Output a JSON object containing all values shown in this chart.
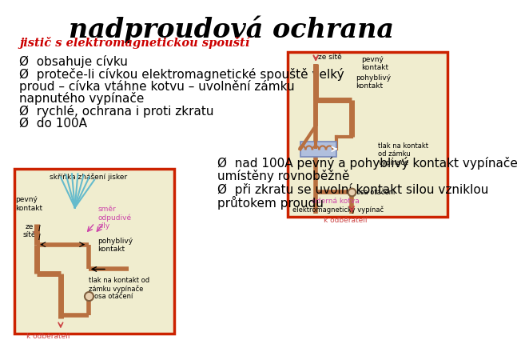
{
  "title": "nadproudová ochrana",
  "subtitle": "jistič s elektromagnetickou spouští",
  "bullet_points": [
    "obsahuje cívku",
    "proteče-li cívkou elektromagnetické spouště velký",
    "proud – cívka vtáhne kotvu – uvolnění zámku",
    "napnutého vypínače",
    "rychlé, ochrana i proti zkratu",
    "do 100A"
  ],
  "bottom_bullets_line1": "Ø  nad 100A pevný a pohyblivý kontakt vypínače",
  "bottom_bullets_line2": "umístěny rovnoběžně",
  "bottom_bullets_line3": "Ø  při zkratu se uvolní kontakt silou vzniklou",
  "bottom_bullets_line4": "průtokem proudu",
  "background_color": "#ffffff",
  "title_color": "#000000",
  "subtitle_color": "#cc0000",
  "bullet_color": "#000000",
  "border_color": "#cc2200",
  "diag_bg": "#f0edcf",
  "wire_color": "#b87040",
  "arrow_color": "#cc4444",
  "cyan_color": "#66bbcc",
  "pink_color": "#cc44aa"
}
